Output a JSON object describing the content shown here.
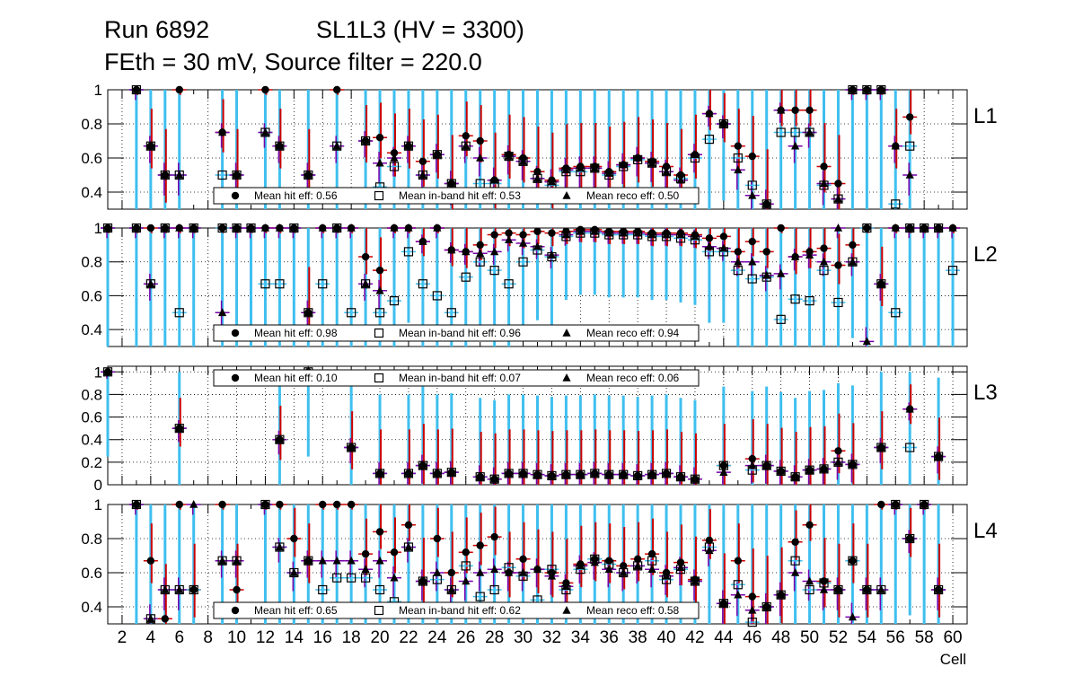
{
  "header": {
    "run": "Run 6892",
    "chamber": "SL1L3 (HV = 3300)",
    "settings": "FEth = 30 mV, Source filter = 220.0"
  },
  "colors": {
    "hit": "#000000",
    "inband": "#000000",
    "reco": "#000000",
    "err_hit": "#cc0000",
    "err_inband": "#3fbfef",
    "err_reco": "#7700aa"
  },
  "chart_data": {
    "type": "scatter",
    "xlabel": "Cell",
    "xlim": [
      1,
      61
    ],
    "x_ticks": [
      "2",
      "4",
      "6",
      "8",
      "10",
      "12",
      "14",
      "16",
      "18",
      "20",
      "22",
      "24",
      "26",
      "28",
      "30",
      "32",
      "34",
      "36",
      "38",
      "40",
      "42",
      "44",
      "46",
      "48",
      "50",
      "52",
      "54",
      "56",
      "58",
      "60"
    ],
    "series_names": [
      "Mean hit  eff",
      "Mean in-band hit eff",
      "Mean reco eff"
    ],
    "panels": [
      {
        "label": "L1",
        "ylim": [
          0.3,
          1.0
        ],
        "y_ticks": [
          "0.4",
          "0.6",
          "0.8",
          "1"
        ],
        "legend": {
          "hit": "Mean hit  eff: 0.56",
          "inband": "Mean in-band hit eff: 0.53",
          "reco": "Mean reco eff: 0.50"
        },
        "cells": [
          3,
          4,
          5,
          6,
          9,
          10,
          12,
          13,
          15,
          17,
          19,
          20,
          21,
          22,
          23,
          24,
          25,
          26,
          27,
          28,
          29,
          30,
          31,
          32,
          33,
          34,
          35,
          36,
          37,
          38,
          39,
          40,
          41,
          42,
          43,
          44,
          45,
          46,
          47,
          48,
          49,
          50,
          51,
          52,
          53,
          54,
          55,
          56,
          57
        ],
        "hit": [
          1.0,
          0.67,
          0.5,
          1.0,
          0.75,
          0.5,
          1.0,
          0.67,
          0.5,
          1.0,
          0.7,
          0.72,
          0.63,
          0.67,
          0.58,
          0.62,
          0.45,
          0.73,
          0.7,
          0.47,
          0.62,
          0.6,
          0.52,
          0.47,
          0.54,
          0.55,
          0.55,
          0.52,
          0.56,
          0.6,
          0.58,
          0.55,
          0.5,
          0.62,
          0.86,
          0.8,
          0.67,
          0.61,
          0.33,
          0.88,
          0.88,
          0.88,
          0.55,
          0.45,
          1.0,
          1.0,
          1.0,
          0.67,
          0.84
        ],
        "inband": [
          1.0,
          0.67,
          0.5,
          0.5,
          0.5,
          0.5,
          0.75,
          0.67,
          0.5,
          0.67,
          0.7,
          0.43,
          0.55,
          0.67,
          0.5,
          0.62,
          0.45,
          0.67,
          0.45,
          0.45,
          0.61,
          0.58,
          0.48,
          0.44,
          0.52,
          0.52,
          0.54,
          0.5,
          0.55,
          0.59,
          0.57,
          0.52,
          0.48,
          0.6,
          0.71,
          0.8,
          0.6,
          0.44,
          0.33,
          0.75,
          0.75,
          0.75,
          0.44,
          0.36,
          1.0,
          1.0,
          1.0,
          0.33,
          0.67
        ],
        "reco": [
          1.0,
          0.67,
          0.5,
          0.5,
          0.75,
          0.5,
          0.75,
          0.67,
          0.5,
          0.67,
          0.7,
          0.57,
          0.6,
          0.67,
          0.5,
          0.62,
          0.45,
          0.67,
          0.6,
          0.47,
          0.61,
          0.58,
          0.48,
          0.46,
          0.53,
          0.54,
          0.54,
          0.51,
          0.56,
          0.6,
          0.57,
          0.52,
          0.47,
          0.62,
          0.86,
          0.8,
          0.53,
          0.38,
          0.33,
          0.88,
          0.67,
          0.75,
          0.45,
          0.36,
          1.0,
          1.0,
          1.0,
          0.67,
          0.5
        ]
      },
      {
        "label": "L2",
        "ylim": [
          0.3,
          1.0
        ],
        "y_ticks": [
          "0.4",
          "0.6",
          "0.8",
          "1"
        ],
        "legend": {
          "hit": "Mean hit  eff: 0.98",
          "inband": "Mean in-band hit eff: 0.96",
          "reco": "Mean reco eff: 0.94"
        },
        "cells": [
          1,
          3,
          4,
          5,
          6,
          7,
          9,
          10,
          11,
          12,
          13,
          14,
          15,
          16,
          17,
          18,
          19,
          20,
          21,
          22,
          23,
          24,
          25,
          26,
          27,
          28,
          29,
          30,
          31,
          32,
          33,
          34,
          35,
          36,
          37,
          38,
          39,
          40,
          41,
          42,
          43,
          44,
          45,
          46,
          47,
          48,
          49,
          50,
          51,
          52,
          53,
          54,
          55,
          56,
          57,
          58,
          59,
          60
        ],
        "hit": [
          1.0,
          1.0,
          1.0,
          1.0,
          1.0,
          1.0,
          1.0,
          1.0,
          1.0,
          1.0,
          1.0,
          1.0,
          0.5,
          1.0,
          1.0,
          1.0,
          0.83,
          0.75,
          1.0,
          1.0,
          0.92,
          1.0,
          0.87,
          0.86,
          0.9,
          0.96,
          0.97,
          0.96,
          0.98,
          0.97,
          0.98,
          0.99,
          0.99,
          0.98,
          0.98,
          0.98,
          0.97,
          0.97,
          0.97,
          0.96,
          0.94,
          0.95,
          0.86,
          0.92,
          0.86,
          1.0,
          0.83,
          0.86,
          0.88,
          0.78,
          0.9,
          1.0,
          0.67,
          1.0,
          1.0,
          1.0,
          1.0,
          1.0
        ],
        "inband": [
          1.0,
          1.0,
          0.67,
          1.0,
          0.5,
          1.0,
          1.0,
          1.0,
          1.0,
          0.67,
          0.67,
          1.0,
          0.5,
          0.67,
          1.0,
          0.5,
          0.67,
          0.5,
          0.57,
          0.86,
          0.67,
          0.6,
          0.5,
          0.71,
          0.8,
          0.75,
          0.67,
          0.8,
          0.87,
          0.83,
          0.95,
          0.97,
          0.97,
          0.96,
          0.96,
          0.96,
          0.95,
          0.95,
          0.94,
          0.93,
          0.86,
          0.86,
          0.75,
          0.7,
          0.71,
          0.46,
          0.58,
          0.57,
          0.75,
          0.56,
          0.8,
          1.0,
          0.67,
          0.5,
          1.0,
          1.0,
          1.0,
          0.75
        ],
        "reco": [
          1.0,
          1.0,
          0.67,
          1.0,
          1.0,
          1.0,
          0.5,
          1.0,
          1.0,
          1.0,
          1.0,
          1.0,
          0.5,
          1.0,
          1.0,
          1.0,
          0.67,
          0.63,
          1.0,
          1.0,
          0.92,
          1.0,
          0.87,
          0.86,
          0.85,
          0.86,
          0.93,
          0.91,
          0.89,
          0.84,
          0.96,
          0.98,
          0.98,
          0.97,
          0.97,
          0.97,
          0.96,
          0.96,
          0.96,
          0.95,
          0.89,
          0.88,
          0.8,
          0.8,
          0.72,
          0.73,
          0.83,
          0.84,
          0.8,
          1.0,
          0.8,
          0.33,
          0.67,
          1.0,
          1.0,
          1.0,
          1.0,
          1.0
        ]
      },
      {
        "label": "L3",
        "ylim": [
          0.0,
          1.05
        ],
        "y_ticks": [
          "0",
          "0.2",
          "0.4",
          "0.6",
          "0.8",
          "1"
        ],
        "legend": {
          "hit": "Mean hit  eff: 0.10",
          "inband": "Mean in-band hit eff: 0.07",
          "reco": "Mean reco eff: 0.06"
        },
        "cells": [
          1,
          6,
          13,
          15,
          18,
          20,
          22,
          23,
          24,
          25,
          27,
          28,
          29,
          30,
          31,
          32,
          33,
          34,
          35,
          36,
          37,
          38,
          39,
          40,
          41,
          42,
          44,
          46,
          47,
          48,
          49,
          50,
          51,
          52,
          53,
          55,
          57,
          59
        ],
        "hit": [
          1.0,
          0.5,
          0.4,
          1.0,
          0.33,
          0.1,
          0.1,
          0.17,
          0.1,
          0.11,
          0.07,
          0.05,
          0.1,
          0.1,
          0.09,
          0.08,
          0.09,
          0.09,
          0.1,
          0.09,
          0.09,
          0.08,
          0.09,
          0.1,
          0.07,
          0.05,
          0.17,
          0.23,
          0.17,
          0.12,
          0.07,
          0.13,
          0.14,
          0.3,
          0.18,
          0.33,
          0.67,
          0.25
        ],
        "inband": [
          1.0,
          0.5,
          0.4,
          1.0,
          0.33,
          0.1,
          0.1,
          0.17,
          0.1,
          0.11,
          0.07,
          0.05,
          0.1,
          0.1,
          0.09,
          0.08,
          0.09,
          0.09,
          0.1,
          0.09,
          0.09,
          0.08,
          0.09,
          0.1,
          0.07,
          0.05,
          0.17,
          0.13,
          0.17,
          0.12,
          0.07,
          0.13,
          0.14,
          0.2,
          0.18,
          0.33,
          0.33,
          0.25
        ],
        "reco": [
          1.0,
          0.5,
          0.4,
          1.0,
          0.33,
          0.1,
          0.1,
          0.17,
          0.1,
          0.11,
          0.07,
          0.05,
          0.1,
          0.1,
          0.09,
          0.08,
          0.09,
          0.09,
          0.1,
          0.09,
          0.09,
          0.08,
          0.09,
          0.1,
          0.07,
          0.05,
          0.11,
          0.17,
          0.17,
          0.12,
          0.07,
          0.13,
          0.14,
          0.2,
          0.18,
          0.33,
          0.67,
          0.25
        ]
      },
      {
        "label": "L4",
        "ylim": [
          0.3,
          1.0
        ],
        "y_ticks": [
          "0.4",
          "0.6",
          "0.8",
          "1"
        ],
        "legend": {
          "hit": "Mean hit  eff: 0.65",
          "inband": "Mean in-band hit eff: 0.62",
          "reco": "Mean reco eff: 0.58"
        },
        "cells": [
          3,
          4,
          5,
          6,
          7,
          9,
          10,
          12,
          13,
          14,
          15,
          16,
          17,
          18,
          19,
          20,
          21,
          22,
          23,
          24,
          25,
          26,
          27,
          28,
          29,
          30,
          31,
          32,
          33,
          34,
          35,
          36,
          37,
          38,
          39,
          40,
          41,
          42,
          43,
          44,
          45,
          46,
          47,
          48,
          49,
          50,
          51,
          52,
          53,
          54,
          55,
          56,
          57,
          58,
          59
        ],
        "hit": [
          1.0,
          0.67,
          0.33,
          1.0,
          0.5,
          1.0,
          0.5,
          1.0,
          1.0,
          0.8,
          0.67,
          1.0,
          1.0,
          1.0,
          0.71,
          0.84,
          0.72,
          0.88,
          0.55,
          0.8,
          0.6,
          0.72,
          0.76,
          0.81,
          0.6,
          0.68,
          0.62,
          0.6,
          0.54,
          0.65,
          0.68,
          0.67,
          0.64,
          0.68,
          0.71,
          0.6,
          0.66,
          0.56,
          0.79,
          0.42,
          0.67,
          0.46,
          0.4,
          0.47,
          0.78,
          0.88,
          0.55,
          0.5,
          0.67,
          0.5,
          1.0,
          1.0,
          0.8,
          1.0,
          0.5
        ],
        "inband": [
          1.0,
          0.33,
          0.5,
          0.5,
          0.5,
          0.67,
          0.67,
          1.0,
          0.75,
          0.6,
          0.67,
          0.5,
          0.57,
          0.57,
          0.57,
          0.5,
          0.43,
          0.75,
          0.55,
          0.56,
          0.5,
          0.64,
          0.46,
          0.5,
          0.63,
          0.58,
          0.44,
          0.62,
          0.5,
          0.62,
          0.68,
          0.65,
          0.6,
          0.64,
          0.67,
          0.56,
          0.62,
          0.55,
          0.75,
          0.42,
          0.53,
          0.31,
          0.4,
          0.47,
          0.67,
          0.5,
          0.54,
          0.5,
          0.67,
          0.5,
          0.5,
          1.0,
          0.8,
          1.0,
          0.5
        ],
        "reco": [
          1.0,
          0.33,
          0.5,
          0.5,
          1.0,
          0.67,
          0.67,
          1.0,
          0.75,
          0.6,
          0.67,
          0.67,
          0.67,
          0.67,
          0.62,
          0.67,
          0.57,
          0.75,
          0.55,
          0.6,
          0.5,
          0.55,
          0.6,
          0.62,
          0.6,
          0.6,
          0.62,
          0.58,
          0.52,
          0.64,
          0.66,
          0.62,
          0.6,
          0.64,
          0.62,
          0.58,
          0.63,
          0.55,
          0.73,
          0.42,
          0.47,
          0.38,
          0.4,
          0.47,
          0.6,
          0.55,
          0.5,
          0.5,
          0.34,
          0.5,
          0.5,
          1.0,
          0.8,
          1.0,
          0.5
        ]
      }
    ]
  }
}
